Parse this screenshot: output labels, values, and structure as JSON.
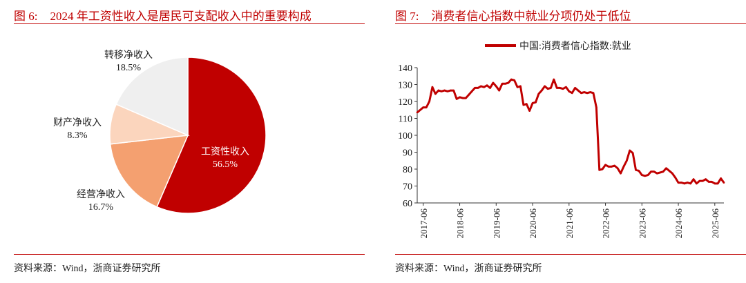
{
  "left": {
    "title_num": "图 6:",
    "title_text": "2024 年工资性收入是居民可支配收入中的重要构成",
    "source": "资料来源：Wind，浙商证券研究所",
    "chart_data": {
      "type": "pie",
      "slices": [
        {
          "name": "工资性收入",
          "value": 56.5,
          "label": "56.5%",
          "color": "#c00000"
        },
        {
          "name": "经营净收入",
          "value": 16.7,
          "label": "16.7%",
          "color": "#f4a070"
        },
        {
          "name": "财产净收入",
          "value": 8.3,
          "label": "8.3%",
          "color": "#fbd5bd"
        },
        {
          "name": "转移净收入",
          "value": 18.5,
          "label": "18.5%",
          "color": "#efefef"
        }
      ]
    }
  },
  "right": {
    "title_num": "图 7:",
    "title_text": "消费者信心指数中就业分项仍处于低位",
    "source": "资料来源：Wind，浙商证券研究所",
    "chart_data": {
      "type": "line",
      "series": [
        {
          "name": "中国:消费者信心指数:就业",
          "color": "#c00000",
          "values": [
            [
              "2017-04",
              113.5
            ],
            [
              "2017-05",
              115
            ],
            [
              "2017-06",
              116.5
            ],
            [
              "2017-07",
              116.5
            ],
            [
              "2017-08",
              120
            ],
            [
              "2017-09",
              128.5
            ],
            [
              "2017-10",
              124.5
            ],
            [
              "2017-11",
              126.5
            ],
            [
              "2017-12",
              126
            ],
            [
              "2018-01",
              126.5
            ],
            [
              "2018-02",
              126
            ],
            [
              "2018-03",
              126.5
            ],
            [
              "2018-04",
              126.5
            ],
            [
              "2018-05",
              121.5
            ],
            [
              "2018-06",
              122.5
            ],
            [
              "2018-07",
              122
            ],
            [
              "2018-08",
              122
            ],
            [
              "2018-09",
              124
            ],
            [
              "2018-10",
              126
            ],
            [
              "2018-11",
              128
            ],
            [
              "2018-12",
              128
            ],
            [
              "2019-01",
              129
            ],
            [
              "2019-02",
              128.5
            ],
            [
              "2019-03",
              129.5
            ],
            [
              "2019-04",
              128
            ],
            [
              "2019-05",
              131
            ],
            [
              "2019-06",
              129
            ],
            [
              "2019-07",
              126.5
            ],
            [
              "2019-08",
              130.5
            ],
            [
              "2019-09",
              130.5
            ],
            [
              "2019-10",
              131
            ],
            [
              "2019-11",
              133
            ],
            [
              "2019-12",
              132.5
            ],
            [
              "2020-01",
              128.5
            ],
            [
              "2020-02",
              129
            ],
            [
              "2020-03",
              118
            ],
            [
              "2020-04",
              118.5
            ],
            [
              "2020-05",
              114.5
            ],
            [
              "2020-06",
              119
            ],
            [
              "2020-07",
              119.5
            ],
            [
              "2020-08",
              124.5
            ],
            [
              "2020-09",
              126.5
            ],
            [
              "2020-10",
              129
            ],
            [
              "2020-11",
              127.5
            ],
            [
              "2020-12",
              128
            ],
            [
              "2021-01",
              133
            ],
            [
              "2021-02",
              128
            ],
            [
              "2021-03",
              128
            ],
            [
              "2021-04",
              127.5
            ],
            [
              "2021-05",
              128.5
            ],
            [
              "2021-06",
              126
            ],
            [
              "2021-07",
              125
            ],
            [
              "2021-08",
              128
            ],
            [
              "2021-09",
              126.5
            ],
            [
              "2021-10",
              125
            ],
            [
              "2021-11",
              125.5
            ],
            [
              "2021-12",
              125
            ],
            [
              "2022-01",
              125.5
            ],
            [
              "2022-02",
              125
            ],
            [
              "2022-03",
              116.5
            ],
            [
              "2022-04",
              79.5
            ],
            [
              "2022-05",
              80
            ],
            [
              "2022-06",
              82.5
            ],
            [
              "2022-07",
              81.5
            ],
            [
              "2022-08",
              81.5
            ],
            [
              "2022-09",
              82
            ],
            [
              "2022-10",
              80.5
            ],
            [
              "2022-11",
              77.5
            ],
            [
              "2022-12",
              81.5
            ],
            [
              "2023-01",
              85
            ],
            [
              "2023-02",
              91
            ],
            [
              "2023-03",
              89.5
            ],
            [
              "2023-04",
              79.5
            ],
            [
              "2023-05",
              79
            ],
            [
              "2023-06",
              76.5
            ],
            [
              "2023-07",
              76
            ],
            [
              "2023-08",
              76.5
            ],
            [
              "2023-09",
              78.5
            ],
            [
              "2023-10",
              78.5
            ],
            [
              "2023-11",
              77.5
            ],
            [
              "2023-12",
              78
            ],
            [
              "2024-01",
              78.5
            ],
            [
              "2024-02",
              80.5
            ],
            [
              "2024-03",
              79
            ],
            [
              "2024-04",
              77.5
            ],
            [
              "2024-05",
              75
            ],
            [
              "2024-06",
              72
            ],
            [
              "2024-07",
              72
            ],
            [
              "2024-08",
              71.5
            ],
            [
              "2024-09",
              72
            ],
            [
              "2024-10",
              71.5
            ],
            [
              "2024-11",
              74
            ],
            [
              "2024-12",
              71.5
            ],
            [
              "2025-01",
              73
            ],
            [
              "2025-02",
              73
            ],
            [
              "2025-03",
              74
            ],
            [
              "2025-04",
              72.5
            ],
            [
              "2025-05",
              72.5
            ],
            [
              "2025-06",
              71.5
            ],
            [
              "2025-07",
              71.5
            ],
            [
              "2025-08",
              74.5
            ],
            [
              "2025-09",
              72
            ]
          ]
        }
      ],
      "xlim": [
        "2017-04",
        "2025-09"
      ],
      "ylim": [
        60,
        140
      ],
      "yticks": [
        60,
        70,
        80,
        90,
        100,
        110,
        120,
        130,
        140
      ],
      "xticks": [
        "2017-06",
        "2018-06",
        "2019-06",
        "2020-06",
        "2021-06",
        "2022-06",
        "2023-06",
        "2024-06",
        "2025-06"
      ],
      "legend_position": "top-center",
      "grid": false
    }
  }
}
